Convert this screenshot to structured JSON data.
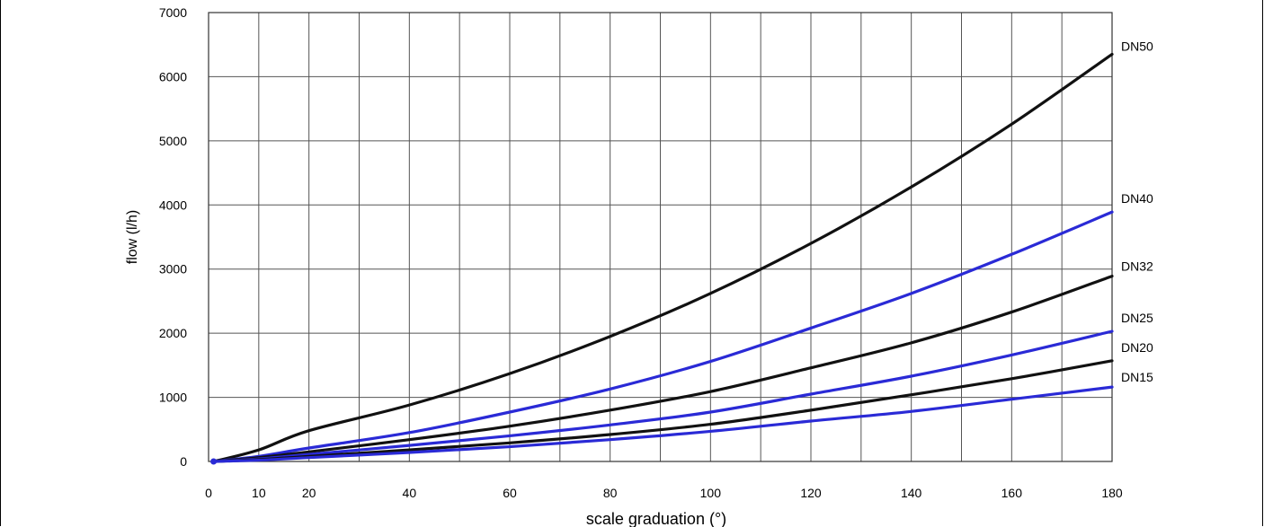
{
  "chart_data": {
    "type": "line",
    "title": "",
    "xlabel": "scale graduation (°)",
    "ylabel": "flow (l/h)",
    "xlim": [
      0,
      180
    ],
    "ylim": [
      0,
      7000
    ],
    "x_ticks": [
      0,
      10,
      20,
      40,
      60,
      80,
      100,
      120,
      140,
      160,
      180
    ],
    "x_tick_labels": [
      "0",
      "10",
      "20",
      "40",
      "60",
      "80",
      "100",
      "120",
      "140",
      "160",
      "180"
    ],
    "x_minor_grid_step": 10,
    "y_ticks": [
      0,
      1000,
      2000,
      3000,
      4000,
      5000,
      6000,
      7000
    ],
    "y_tick_labels": [
      "0",
      "1000",
      "2000",
      "3000",
      "4000",
      "5000",
      "6000",
      "7000"
    ],
    "grid": true,
    "legend": "inline labels at line ends (right)",
    "series": [
      {
        "name": "DN50",
        "color": "#111111",
        "x": [
          1,
          10,
          20,
          40,
          60,
          80,
          100,
          120,
          140,
          160,
          180
        ],
        "values": [
          0,
          180,
          480,
          880,
          1370,
          1950,
          2620,
          3400,
          4280,
          5260,
          6350
        ]
      },
      {
        "name": "DN40",
        "color": "#2a2ad6",
        "x": [
          1,
          10,
          20,
          40,
          60,
          80,
          100,
          120,
          140,
          160,
          180
        ],
        "values": [
          0,
          80,
          210,
          450,
          770,
          1130,
          1560,
          2080,
          2620,
          3230,
          3890
        ]
      },
      {
        "name": "DN32",
        "color": "#111111",
        "x": [
          1,
          10,
          20,
          40,
          60,
          80,
          100,
          120,
          140,
          160,
          180
        ],
        "values": [
          0,
          60,
          150,
          340,
          550,
          800,
          1090,
          1460,
          1850,
          2330,
          2890
        ]
      },
      {
        "name": "DN25",
        "color": "#2a2ad6",
        "x": [
          1,
          10,
          20,
          40,
          60,
          80,
          100,
          120,
          140,
          160,
          180
        ],
        "values": [
          0,
          40,
          110,
          250,
          400,
          570,
          770,
          1050,
          1330,
          1660,
          2030
        ]
      },
      {
        "name": "DN20",
        "color": "#111111",
        "x": [
          1,
          10,
          20,
          40,
          60,
          80,
          100,
          120,
          140,
          160,
          180
        ],
        "values": [
          0,
          30,
          80,
          180,
          290,
          420,
          580,
          800,
          1040,
          1290,
          1570
        ]
      },
      {
        "name": "DN15",
        "color": "#2a2ad6",
        "x": [
          1,
          10,
          20,
          40,
          60,
          80,
          100,
          120,
          140,
          160,
          180
        ],
        "values": [
          0,
          20,
          60,
          140,
          230,
          340,
          470,
          630,
          780,
          970,
          1160
        ]
      }
    ]
  }
}
